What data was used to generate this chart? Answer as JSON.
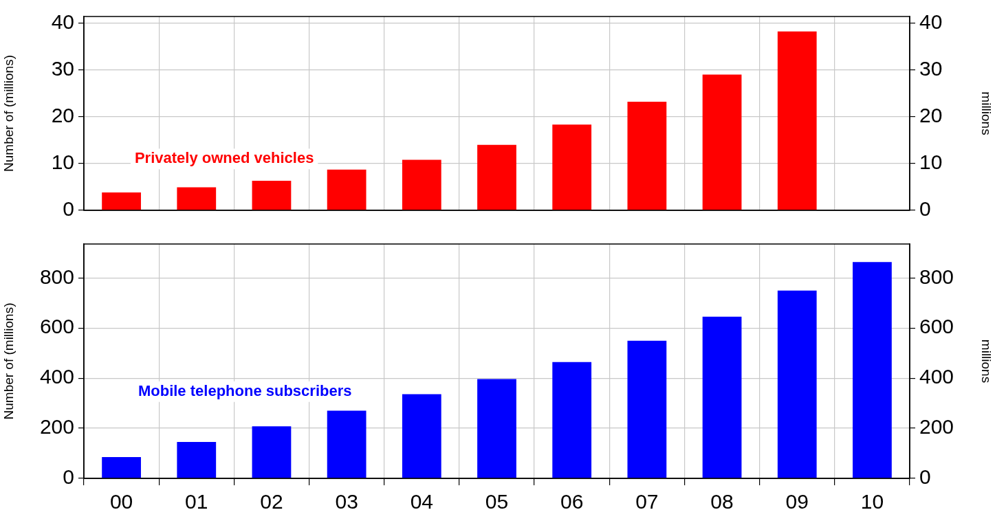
{
  "chart_data": [
    {
      "type": "bar",
      "ylabel": "Number of (millions)",
      "y2label": "millions",
      "categories": [
        "00",
        "01",
        "02",
        "03",
        "04",
        "05",
        "06",
        "07",
        "08",
        "09",
        "10"
      ],
      "series": [
        {
          "name": "Privately owned vehicles",
          "color": "#ff0000",
          "values": [
            3.8,
            4.9,
            6.3,
            8.7,
            10.8,
            14.0,
            18.3,
            23.2,
            29.0,
            38.2,
            null
          ]
        }
      ],
      "ylim": [
        0,
        41.4
      ],
      "yticks": [
        0,
        10,
        20,
        30,
        40
      ],
      "y2lim": [
        0,
        41.4
      ],
      "y2ticks": [
        0,
        10,
        20,
        30,
        40
      ],
      "grid": true,
      "legend": false,
      "tick_labels": "y"
    },
    {
      "type": "bar",
      "ylabel": "Number of (millions)",
      "y2label": "millions",
      "categories": [
        "00",
        "01",
        "02",
        "03",
        "04",
        "05",
        "06",
        "07",
        "08",
        "09",
        "10"
      ],
      "series": [
        {
          "name": "Mobile telephone subscribers",
          "color": "#0000ff",
          "values": [
            85,
            145,
            208,
            270,
            336,
            396,
            464,
            549,
            645,
            749,
            863
          ]
        }
      ],
      "ylim": [
        0,
        935
      ],
      "yticks": [
        0,
        200,
        400,
        600,
        800
      ],
      "y2lim": [
        0,
        935
      ],
      "y2ticks": [
        0,
        200,
        400,
        600,
        800
      ],
      "grid": true,
      "legend": false
    }
  ]
}
